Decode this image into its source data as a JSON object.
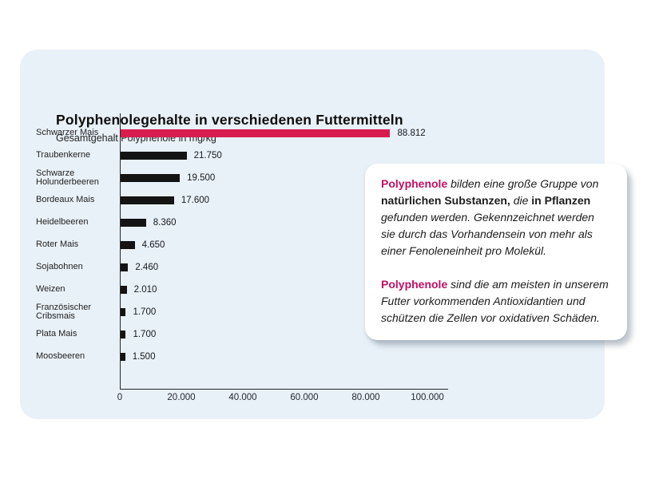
{
  "colors": {
    "panel_bg": "#e8f1f8",
    "card_bg": "#ffffff",
    "bar_default": "#141414",
    "bar_highlight": "#d81c4e",
    "highlight_text": "#c10f62"
  },
  "header": {
    "title": "Polyphenolegehalte in verschiedenen Futtermitteln",
    "subtitle": "Gesamtgehalt Polyphenole in mg/kg"
  },
  "chart_data": {
    "type": "bar",
    "orientation": "horizontal",
    "title": "Polyphenolegehalte in verschiedenen Futtermitteln",
    "subtitle": "Gesamtgehalt Polyphenole in mg/kg",
    "xlabel": "",
    "ylabel": "",
    "categories": [
      "Schwarzer Mais",
      "Traubenkerne",
      "Schwarze Holunderbeeren",
      "Bordeaux Mais",
      "Heidelbeeren",
      "Roter Mais",
      "Sojabohnen",
      "Weizen",
      "Französischer Cribsmais",
      "Plata Mais",
      "Moosbeeren"
    ],
    "values": [
      88812,
      21750,
      19500,
      17600,
      8360,
      4650,
      2460,
      2010,
      1700,
      1700,
      1500
    ],
    "value_labels": [
      "88.812",
      "21.750",
      "19.500",
      "17.600",
      "8.360",
      "4.650",
      "2.460",
      "2.010",
      "1.700",
      "1.700",
      "1.500"
    ],
    "highlight_index": 0,
    "xlim": [
      0,
      100000
    ],
    "x_ticks": [
      0,
      20000,
      40000,
      60000,
      80000,
      100000
    ],
    "x_tick_labels": [
      "0",
      "20.000",
      "40.000",
      "60.000",
      "80.000",
      "100.000"
    ],
    "grid": false,
    "legend": false
  },
  "info_card": {
    "paragraphs": [
      {
        "segments": [
          {
            "text": "Polyphenole",
            "style": "highlight"
          },
          {
            "text": " bilden eine große Gruppe von ",
            "style": "italic"
          },
          {
            "text": "natürlichen Substanzen,",
            "style": "bold"
          },
          {
            "text": " die ",
            "style": "italic"
          },
          {
            "text": "in Pflanzen",
            "style": "bold"
          },
          {
            "text": " gefunden werden. Gekennzeichnet werden sie durch das Vorhandensein von mehr als einer Fenoleneinheit pro Molekül.",
            "style": "italic"
          }
        ]
      },
      {
        "segments": [
          {
            "text": "Polyphenole",
            "style": "highlight"
          },
          {
            "text": " sind die am meisten in unserem Futter vorkommenden Antioxidantien und schützen die Zellen vor oxidativen Schäden.",
            "style": "italic"
          }
        ]
      }
    ]
  }
}
